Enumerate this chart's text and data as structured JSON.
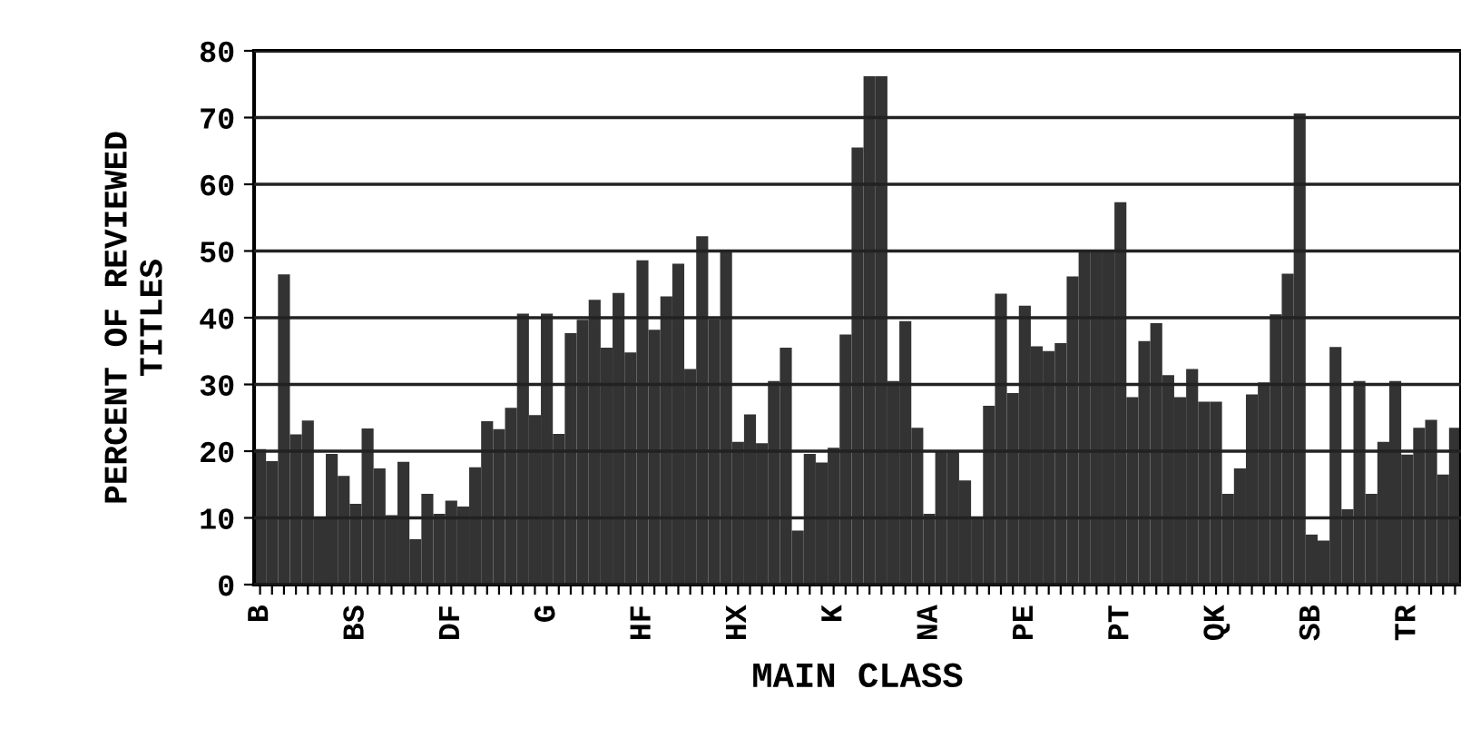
{
  "chart_data": {
    "type": "bar",
    "xlabel": "MAIN CLASS",
    "ylabel": "PERCENT OF REVIEWED\nTITLES",
    "categories": [
      "B",
      null,
      null,
      null,
      null,
      null,
      null,
      null,
      "BS",
      null,
      null,
      null,
      null,
      null,
      null,
      null,
      "DF",
      null,
      null,
      null,
      null,
      null,
      null,
      null,
      "G",
      null,
      null,
      null,
      null,
      null,
      null,
      null,
      "HF",
      null,
      null,
      null,
      null,
      null,
      null,
      null,
      "HX",
      null,
      null,
      null,
      null,
      null,
      null,
      null,
      "K",
      null,
      null,
      null,
      null,
      null,
      null,
      null,
      "NA",
      null,
      null,
      null,
      null,
      null,
      null,
      null,
      "PE",
      null,
      null,
      null,
      null,
      null,
      null,
      null,
      "PT",
      null,
      null,
      null,
      null,
      null,
      null,
      null,
      "QK",
      null,
      null,
      null,
      null,
      null,
      null,
      null,
      "SB",
      null,
      null,
      null,
      null,
      null,
      null,
      null,
      "TR",
      null,
      null,
      null,
      null
    ],
    "values": [
      20.3,
      18.5,
      46.5,
      22.5,
      24.6,
      10,
      19.6,
      16.3,
      12.1,
      23.4,
      17.4,
      10.4,
      18.4,
      6.8,
      13.6,
      10.6,
      12.6,
      11.7,
      17.6,
      24.5,
      23.3,
      26.5,
      40.6,
      25.4,
      40.6,
      22.6,
      37.7,
      39.7,
      42.7,
      35.5,
      43.7,
      34.8,
      48.6,
      38.2,
      43.2,
      48.1,
      32.3,
      52.2,
      39.8,
      50.2,
      21.4,
      25.5,
      21.2,
      30.5,
      35.5,
      8.1,
      19.6,
      18.3,
      20.5,
      37.5,
      65.5,
      76.2,
      76.2,
      30.5,
      39.5,
      23.5,
      10.6,
      19.9,
      19.9,
      15.6,
      10.1,
      26.8,
      43.6,
      28.7,
      41.8,
      35.7,
      35,
      36.2,
      46.2,
      49.8,
      49.8,
      49.8,
      57.3,
      28.1,
      36.5,
      39.2,
      31.4,
      28.1,
      32.3,
      27.4,
      27.4,
      13.6,
      17.4,
      28.5,
      30.3,
      40.5,
      46.6,
      70.6,
      7.5,
      6.6,
      35.6,
      11.3,
      30.5,
      13.6,
      21.4,
      30.5,
      19.5,
      23.5,
      24.7,
      16.5,
      23.5
    ],
    "color": "#333333",
    "ylim": [
      0,
      80
    ],
    "yticks": [
      0,
      10,
      20,
      30,
      40,
      50,
      60,
      70,
      80
    ],
    "grid": "y"
  }
}
